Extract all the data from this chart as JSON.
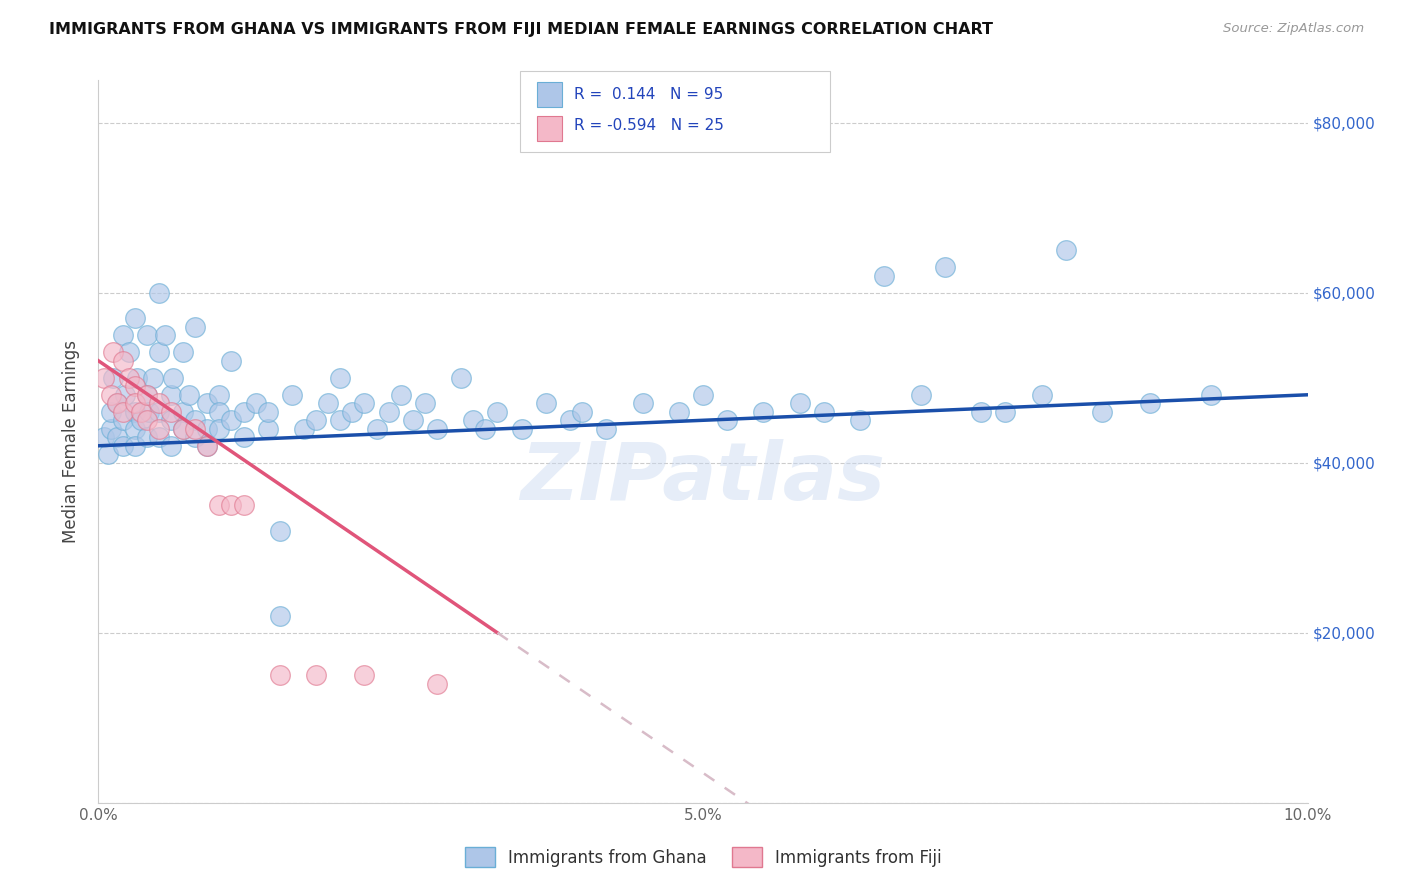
{
  "title": "IMMIGRANTS FROM GHANA VS IMMIGRANTS FROM FIJI MEDIAN FEMALE EARNINGS CORRELATION CHART",
  "source": "Source: ZipAtlas.com",
  "ylabel": "Median Female Earnings",
  "x_min": 0.0,
  "x_max": 0.1,
  "y_min": 0,
  "y_max": 85000,
  "ghana_color": "#aec6e8",
  "ghana_edge_color": "#6aaed6",
  "fiji_color": "#f4b8c8",
  "fiji_edge_color": "#e07890",
  "ghana_line_color": "#1a4faa",
  "fiji_line_color": "#e0557a",
  "fiji_dash_color": "#d8bcc8",
  "ghana_R": 0.144,
  "ghana_N": 95,
  "fiji_R": -0.594,
  "fiji_N": 25,
  "watermark": "ZIPatlas",
  "watermark_color": "#c8d8f0",
  "ghana_x": [
    0.0005,
    0.0008,
    0.001,
    0.001,
    0.0012,
    0.0015,
    0.0015,
    0.002,
    0.002,
    0.002,
    0.0022,
    0.0025,
    0.003,
    0.003,
    0.003,
    0.003,
    0.0032,
    0.0035,
    0.004,
    0.004,
    0.004,
    0.0042,
    0.0045,
    0.005,
    0.005,
    0.005,
    0.005,
    0.0055,
    0.006,
    0.006,
    0.006,
    0.0062,
    0.007,
    0.007,
    0.007,
    0.0075,
    0.008,
    0.008,
    0.008,
    0.009,
    0.009,
    0.009,
    0.01,
    0.01,
    0.01,
    0.011,
    0.011,
    0.012,
    0.012,
    0.013,
    0.014,
    0.014,
    0.015,
    0.015,
    0.016,
    0.017,
    0.018,
    0.019,
    0.02,
    0.02,
    0.021,
    0.022,
    0.023,
    0.024,
    0.025,
    0.026,
    0.027,
    0.028,
    0.03,
    0.031,
    0.032,
    0.033,
    0.035,
    0.037,
    0.039,
    0.04,
    0.042,
    0.045,
    0.048,
    0.05,
    0.052,
    0.055,
    0.058,
    0.06,
    0.063,
    0.065,
    0.068,
    0.07,
    0.073,
    0.075,
    0.078,
    0.08,
    0.083,
    0.087,
    0.092
  ],
  "ghana_y": [
    43000,
    41000,
    44000,
    46000,
    50000,
    43000,
    47000,
    55000,
    45000,
    42000,
    48000,
    53000,
    57000,
    46000,
    44000,
    42000,
    50000,
    45000,
    55000,
    48000,
    43000,
    46000,
    50000,
    60000,
    53000,
    46000,
    43000,
    55000,
    48000,
    45000,
    42000,
    50000,
    53000,
    46000,
    44000,
    48000,
    56000,
    45000,
    43000,
    47000,
    44000,
    42000,
    48000,
    46000,
    44000,
    52000,
    45000,
    46000,
    43000,
    47000,
    44000,
    46000,
    32000,
    22000,
    48000,
    44000,
    45000,
    47000,
    50000,
    45000,
    46000,
    47000,
    44000,
    46000,
    48000,
    45000,
    47000,
    44000,
    50000,
    45000,
    44000,
    46000,
    44000,
    47000,
    45000,
    46000,
    44000,
    47000,
    46000,
    48000,
    45000,
    46000,
    47000,
    46000,
    45000,
    62000,
    48000,
    63000,
    46000,
    46000,
    48000,
    65000,
    46000,
    47000,
    48000
  ],
  "fiji_x": [
    0.0005,
    0.001,
    0.0012,
    0.0015,
    0.002,
    0.002,
    0.0025,
    0.003,
    0.003,
    0.0035,
    0.004,
    0.004,
    0.005,
    0.005,
    0.006,
    0.007,
    0.008,
    0.009,
    0.01,
    0.011,
    0.012,
    0.015,
    0.018,
    0.022,
    0.028
  ],
  "fiji_y": [
    50000,
    48000,
    53000,
    47000,
    52000,
    46000,
    50000,
    49000,
    47000,
    46000,
    48000,
    45000,
    47000,
    44000,
    46000,
    44000,
    44000,
    42000,
    35000,
    35000,
    35000,
    15000,
    15000,
    15000,
    14000
  ]
}
